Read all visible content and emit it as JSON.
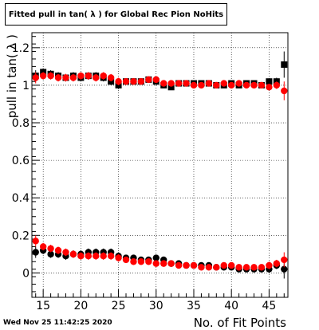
{
  "title": "Fitted pull in tan( λ ) for Global Rec Pion NoHits",
  "timestamp": "Wed Nov 25 11:42:25 2020",
  "colors": {
    "sigma": "#000000",
    "mean": "#ff0000",
    "grid": "#000000"
  },
  "chart_data": {
    "type": "scatter",
    "title": "Fitted pull in tan( λ ) for Global Rec Pion NoHits",
    "xlabel": "No. of Fit Points",
    "ylabel": "pull in tan( λ )",
    "xlim": [
      13.5,
      47.5
    ],
    "ylim": [
      -0.13,
      1.28
    ],
    "grid": true,
    "x_ticks": [
      15,
      20,
      25,
      30,
      35,
      40,
      45
    ],
    "y_ticks": [
      0,
      0.2,
      0.4,
      0.6,
      0.8,
      1,
      1.2
    ],
    "y_tick_labels": [
      "0",
      "0.2",
      "0.4",
      "0.6",
      "0.8",
      "1",
      "1.2"
    ],
    "series": [
      {
        "marker": "square",
        "color": "#000000",
        "x": [
          14,
          15,
          16,
          17,
          18,
          19,
          20,
          21,
          22,
          23,
          24,
          25,
          26,
          27,
          28,
          29,
          30,
          31,
          32,
          33,
          34,
          35,
          36,
          37,
          38,
          39,
          40,
          41,
          42,
          43,
          44,
          45,
          46,
          47
        ],
        "y": [
          1.05,
          1.07,
          1.06,
          1.05,
          1.04,
          1.05,
          1.04,
          1.05,
          1.05,
          1.04,
          1.02,
          1.0,
          1.02,
          1.02,
          1.02,
          1.03,
          1.02,
          1.0,
          0.99,
          1.01,
          1.01,
          1.01,
          1.01,
          1.01,
          1.0,
          1.0,
          1.01,
          1.0,
          1.01,
          1.01,
          1.0,
          1.02,
          1.02,
          1.11
        ],
        "yerr": [
          0.03,
          0.02,
          0.02,
          0.02,
          0.02,
          0.02,
          0.02,
          0.02,
          0.02,
          0.02,
          0.02,
          0.02,
          0.01,
          0.01,
          0.01,
          0.01,
          0.01,
          0.01,
          0.01,
          0.01,
          0.01,
          0.01,
          0.01,
          0.01,
          0.01,
          0.01,
          0.01,
          0.01,
          0.01,
          0.01,
          0.01,
          0.01,
          0.02,
          0.07
        ]
      },
      {
        "marker": "circle",
        "color": "#ff0000",
        "x": [
          14,
          15,
          16,
          17,
          18,
          19,
          20,
          21,
          22,
          23,
          24,
          25,
          26,
          27,
          28,
          29,
          30,
          31,
          32,
          33,
          34,
          35,
          36,
          37,
          38,
          39,
          40,
          41,
          42,
          43,
          44,
          45,
          46,
          47
        ],
        "y": [
          1.04,
          1.05,
          1.05,
          1.04,
          1.04,
          1.04,
          1.05,
          1.05,
          1.04,
          1.05,
          1.04,
          1.02,
          1.02,
          1.02,
          1.02,
          1.03,
          1.03,
          1.01,
          1.01,
          1.01,
          1.01,
          1.0,
          1.0,
          1.01,
          1.0,
          1.01,
          1.0,
          1.01,
          1.0,
          1.0,
          1.0,
          0.99,
          1.0,
          0.97
        ],
        "yerr": [
          0.03,
          0.02,
          0.02,
          0.02,
          0.02,
          0.02,
          0.02,
          0.02,
          0.02,
          0.02,
          0.02,
          0.02,
          0.01,
          0.01,
          0.01,
          0.01,
          0.01,
          0.01,
          0.01,
          0.01,
          0.01,
          0.01,
          0.01,
          0.01,
          0.01,
          0.01,
          0.01,
          0.01,
          0.01,
          0.01,
          0.01,
          0.01,
          0.02,
          0.05
        ]
      },
      {
        "marker": "circle",
        "color": "#000000",
        "x": [
          14,
          15,
          16,
          17,
          18,
          19,
          20,
          21,
          22,
          23,
          24,
          25,
          26,
          27,
          28,
          29,
          30,
          31,
          32,
          33,
          34,
          35,
          36,
          37,
          38,
          39,
          40,
          41,
          42,
          43,
          44,
          45,
          46,
          47
        ],
        "y": [
          0.11,
          0.12,
          0.1,
          0.1,
          0.09,
          0.1,
          0.1,
          0.11,
          0.11,
          0.11,
          0.11,
          0.09,
          0.08,
          0.08,
          0.07,
          0.07,
          0.08,
          0.07,
          0.05,
          0.05,
          0.04,
          0.04,
          0.04,
          0.04,
          0.03,
          0.03,
          0.03,
          0.02,
          0.02,
          0.02,
          0.02,
          0.02,
          0.04,
          0.02
        ],
        "yerr": [
          0.03,
          0.02,
          0.02,
          0.02,
          0.02,
          0.02,
          0.02,
          0.02,
          0.02,
          0.02,
          0.02,
          0.02,
          0.01,
          0.01,
          0.01,
          0.01,
          0.01,
          0.01,
          0.01,
          0.01,
          0.01,
          0.01,
          0.01,
          0.01,
          0.01,
          0.01,
          0.01,
          0.01,
          0.01,
          0.01,
          0.01,
          0.02,
          0.02,
          0.05
        ]
      },
      {
        "marker": "circle",
        "color": "#ff0000",
        "x": [
          14,
          15,
          16,
          17,
          18,
          19,
          20,
          21,
          22,
          23,
          24,
          25,
          26,
          27,
          28,
          29,
          30,
          31,
          32,
          33,
          34,
          35,
          36,
          37,
          38,
          39,
          40,
          41,
          42,
          43,
          44,
          45,
          46,
          47
        ],
        "y": [
          0.17,
          0.14,
          0.13,
          0.12,
          0.11,
          0.1,
          0.09,
          0.09,
          0.09,
          0.09,
          0.09,
          0.08,
          0.07,
          0.06,
          0.06,
          0.06,
          0.05,
          0.05,
          0.05,
          0.04,
          0.04,
          0.04,
          0.03,
          0.03,
          0.03,
          0.04,
          0.04,
          0.03,
          0.03,
          0.03,
          0.03,
          0.04,
          0.05,
          0.07
        ],
        "yerr": [
          0.03,
          0.02,
          0.02,
          0.02,
          0.02,
          0.02,
          0.02,
          0.02,
          0.02,
          0.02,
          0.02,
          0.02,
          0.01,
          0.01,
          0.01,
          0.01,
          0.01,
          0.01,
          0.01,
          0.01,
          0.01,
          0.01,
          0.01,
          0.01,
          0.01,
          0.01,
          0.01,
          0.01,
          0.01,
          0.01,
          0.01,
          0.02,
          0.02,
          0.04
        ]
      }
    ]
  }
}
